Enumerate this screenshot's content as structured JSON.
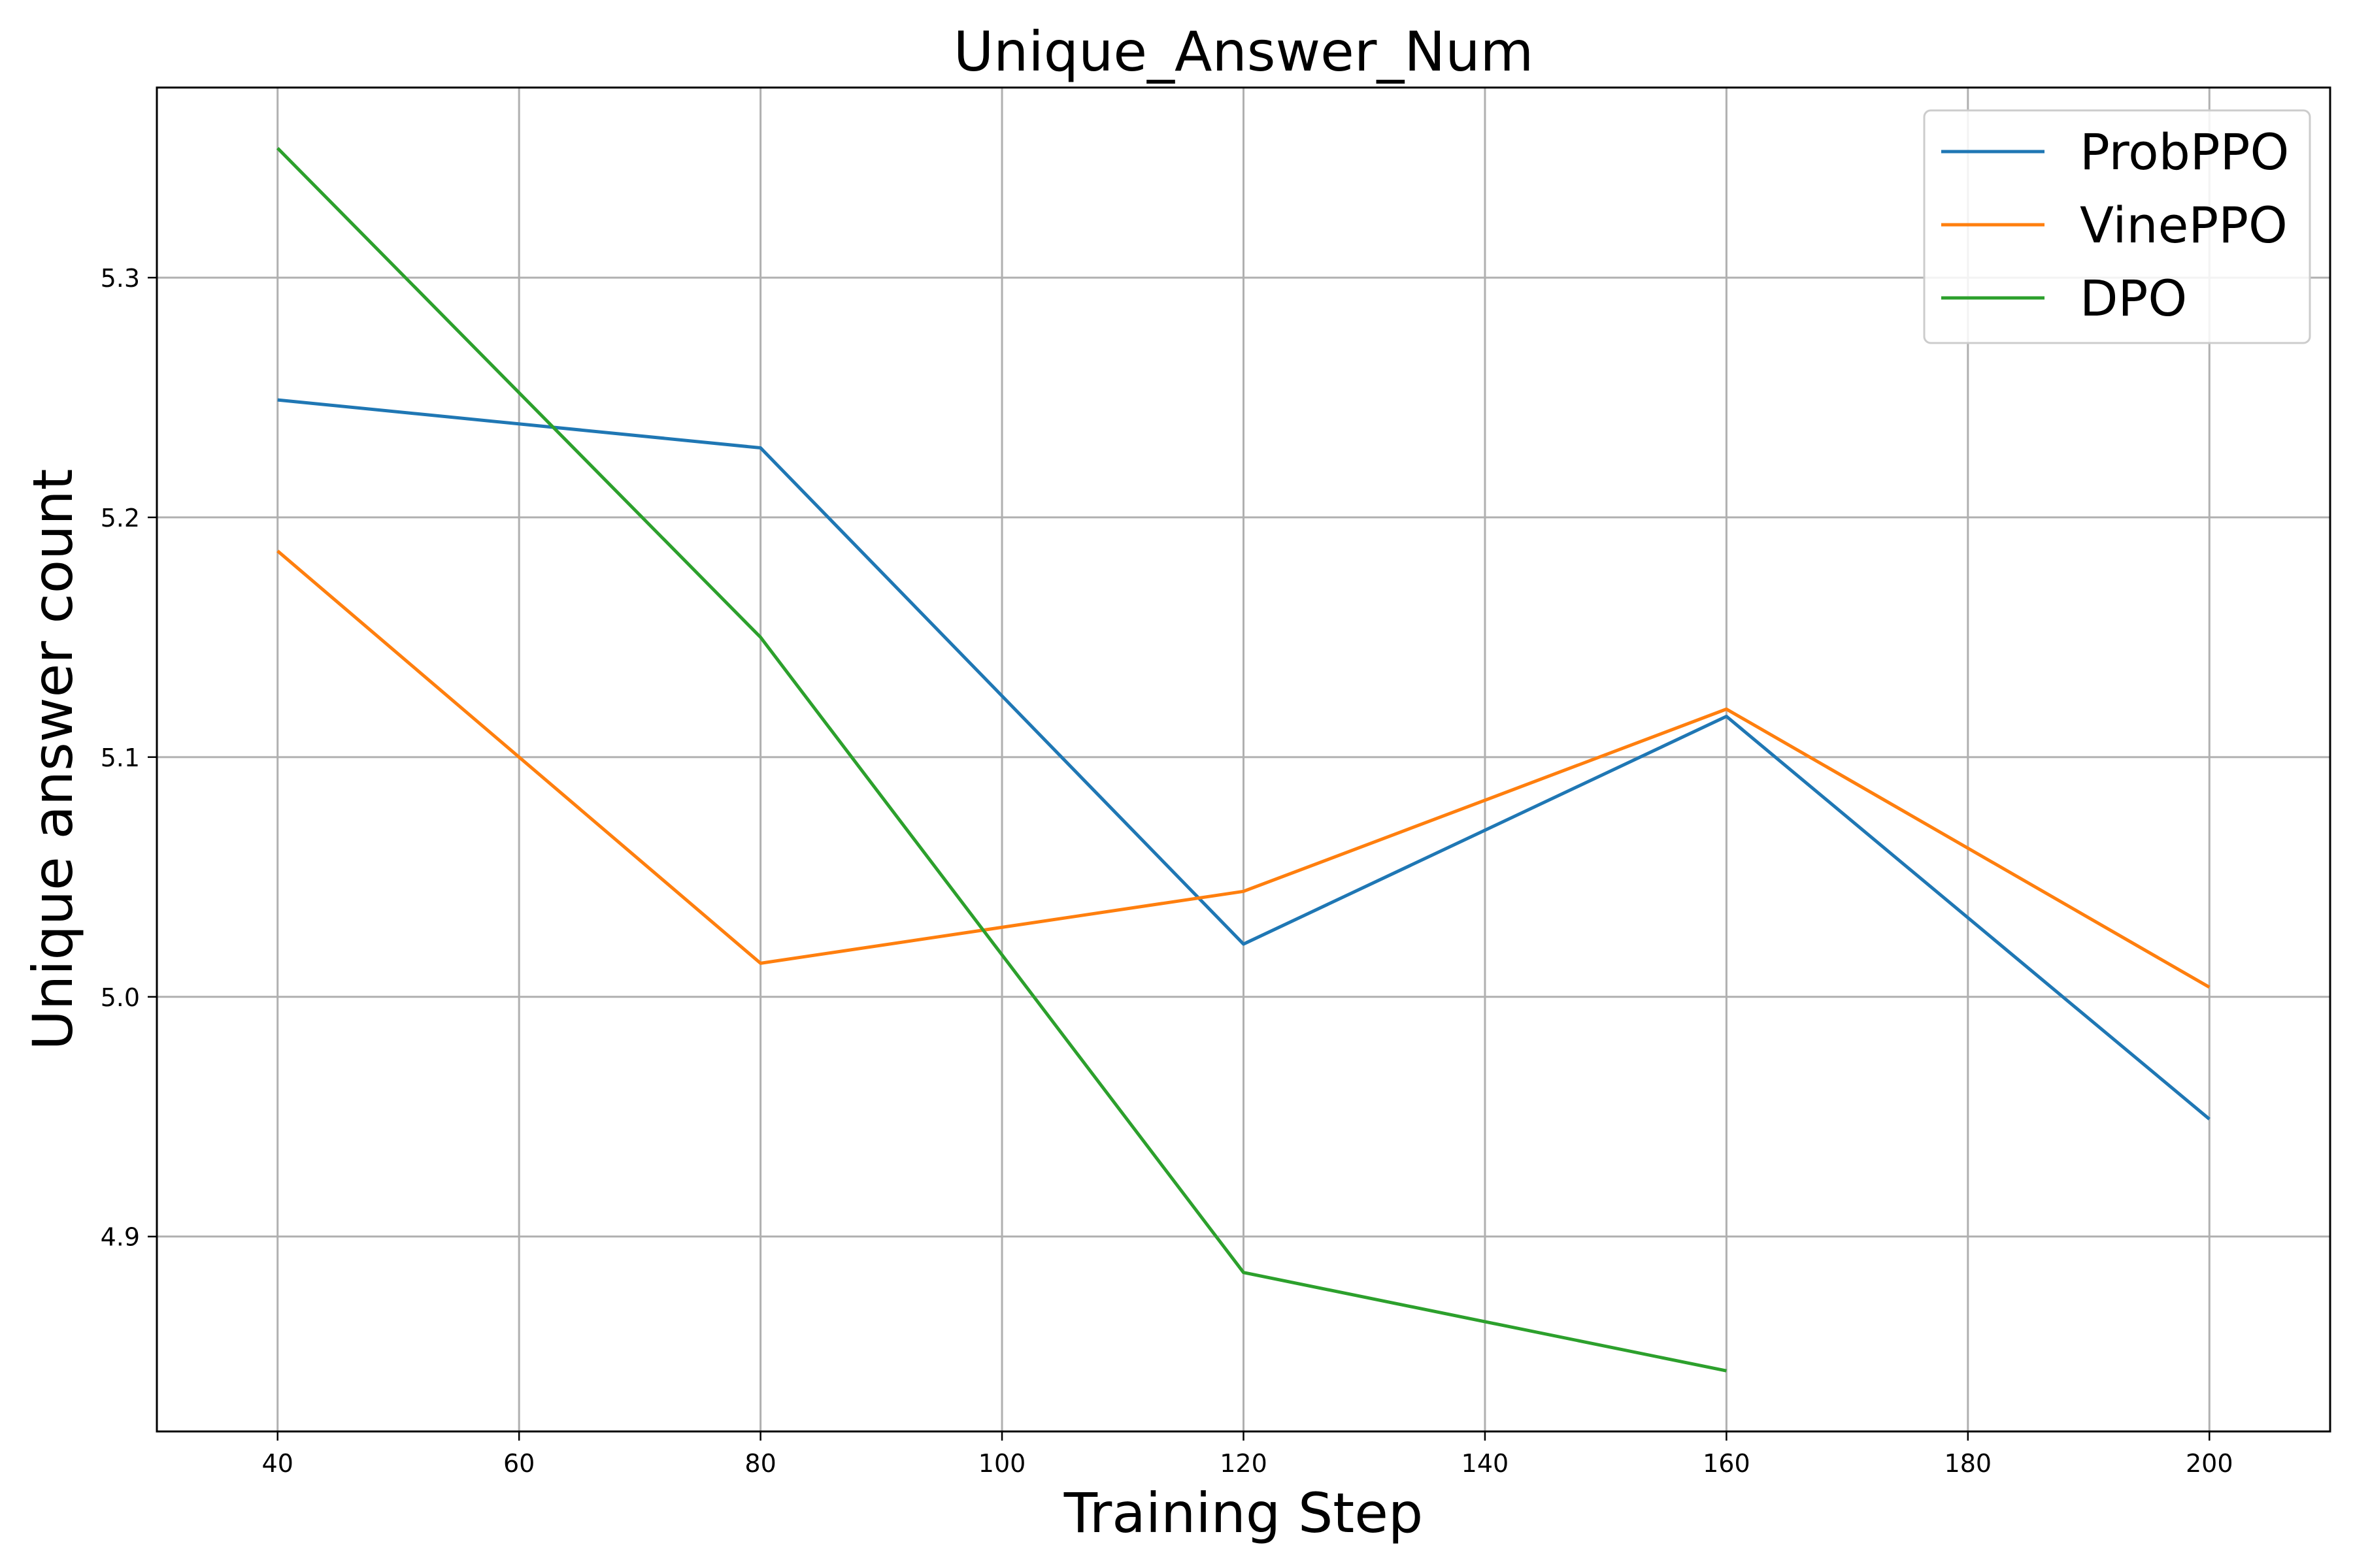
{
  "chart_data": {
    "type": "line",
    "title": "Unique_Answer_Num",
    "xlabel": "Training Step",
    "ylabel": "Unique answer count",
    "xlim": [
      30,
      210
    ],
    "ylim": [
      4.8187,
      5.3793
    ],
    "xticks": [
      40,
      60,
      80,
      100,
      120,
      140,
      160,
      180,
      200
    ],
    "yticks": [
      4.9,
      5.0,
      5.1,
      5.2,
      5.3
    ],
    "grid": true,
    "legend": "top-right",
    "series": [
      {
        "name": "ProbPPO",
        "color": "#1f77b4",
        "x": [
          40,
          80,
          120,
          160,
          200
        ],
        "y": [
          5.249,
          5.229,
          5.022,
          5.117,
          4.949
        ]
      },
      {
        "name": "VinePPO",
        "color": "#ff7f0e",
        "x": [
          40,
          80,
          120,
          160,
          200
        ],
        "y": [
          5.186,
          5.014,
          5.044,
          5.12,
          5.004
        ]
      },
      {
        "name": "DPO",
        "color": "#2ca02c",
        "x": [
          40,
          80,
          120,
          160
        ],
        "y": [
          5.354,
          5.15,
          4.885,
          4.844
        ]
      }
    ]
  }
}
